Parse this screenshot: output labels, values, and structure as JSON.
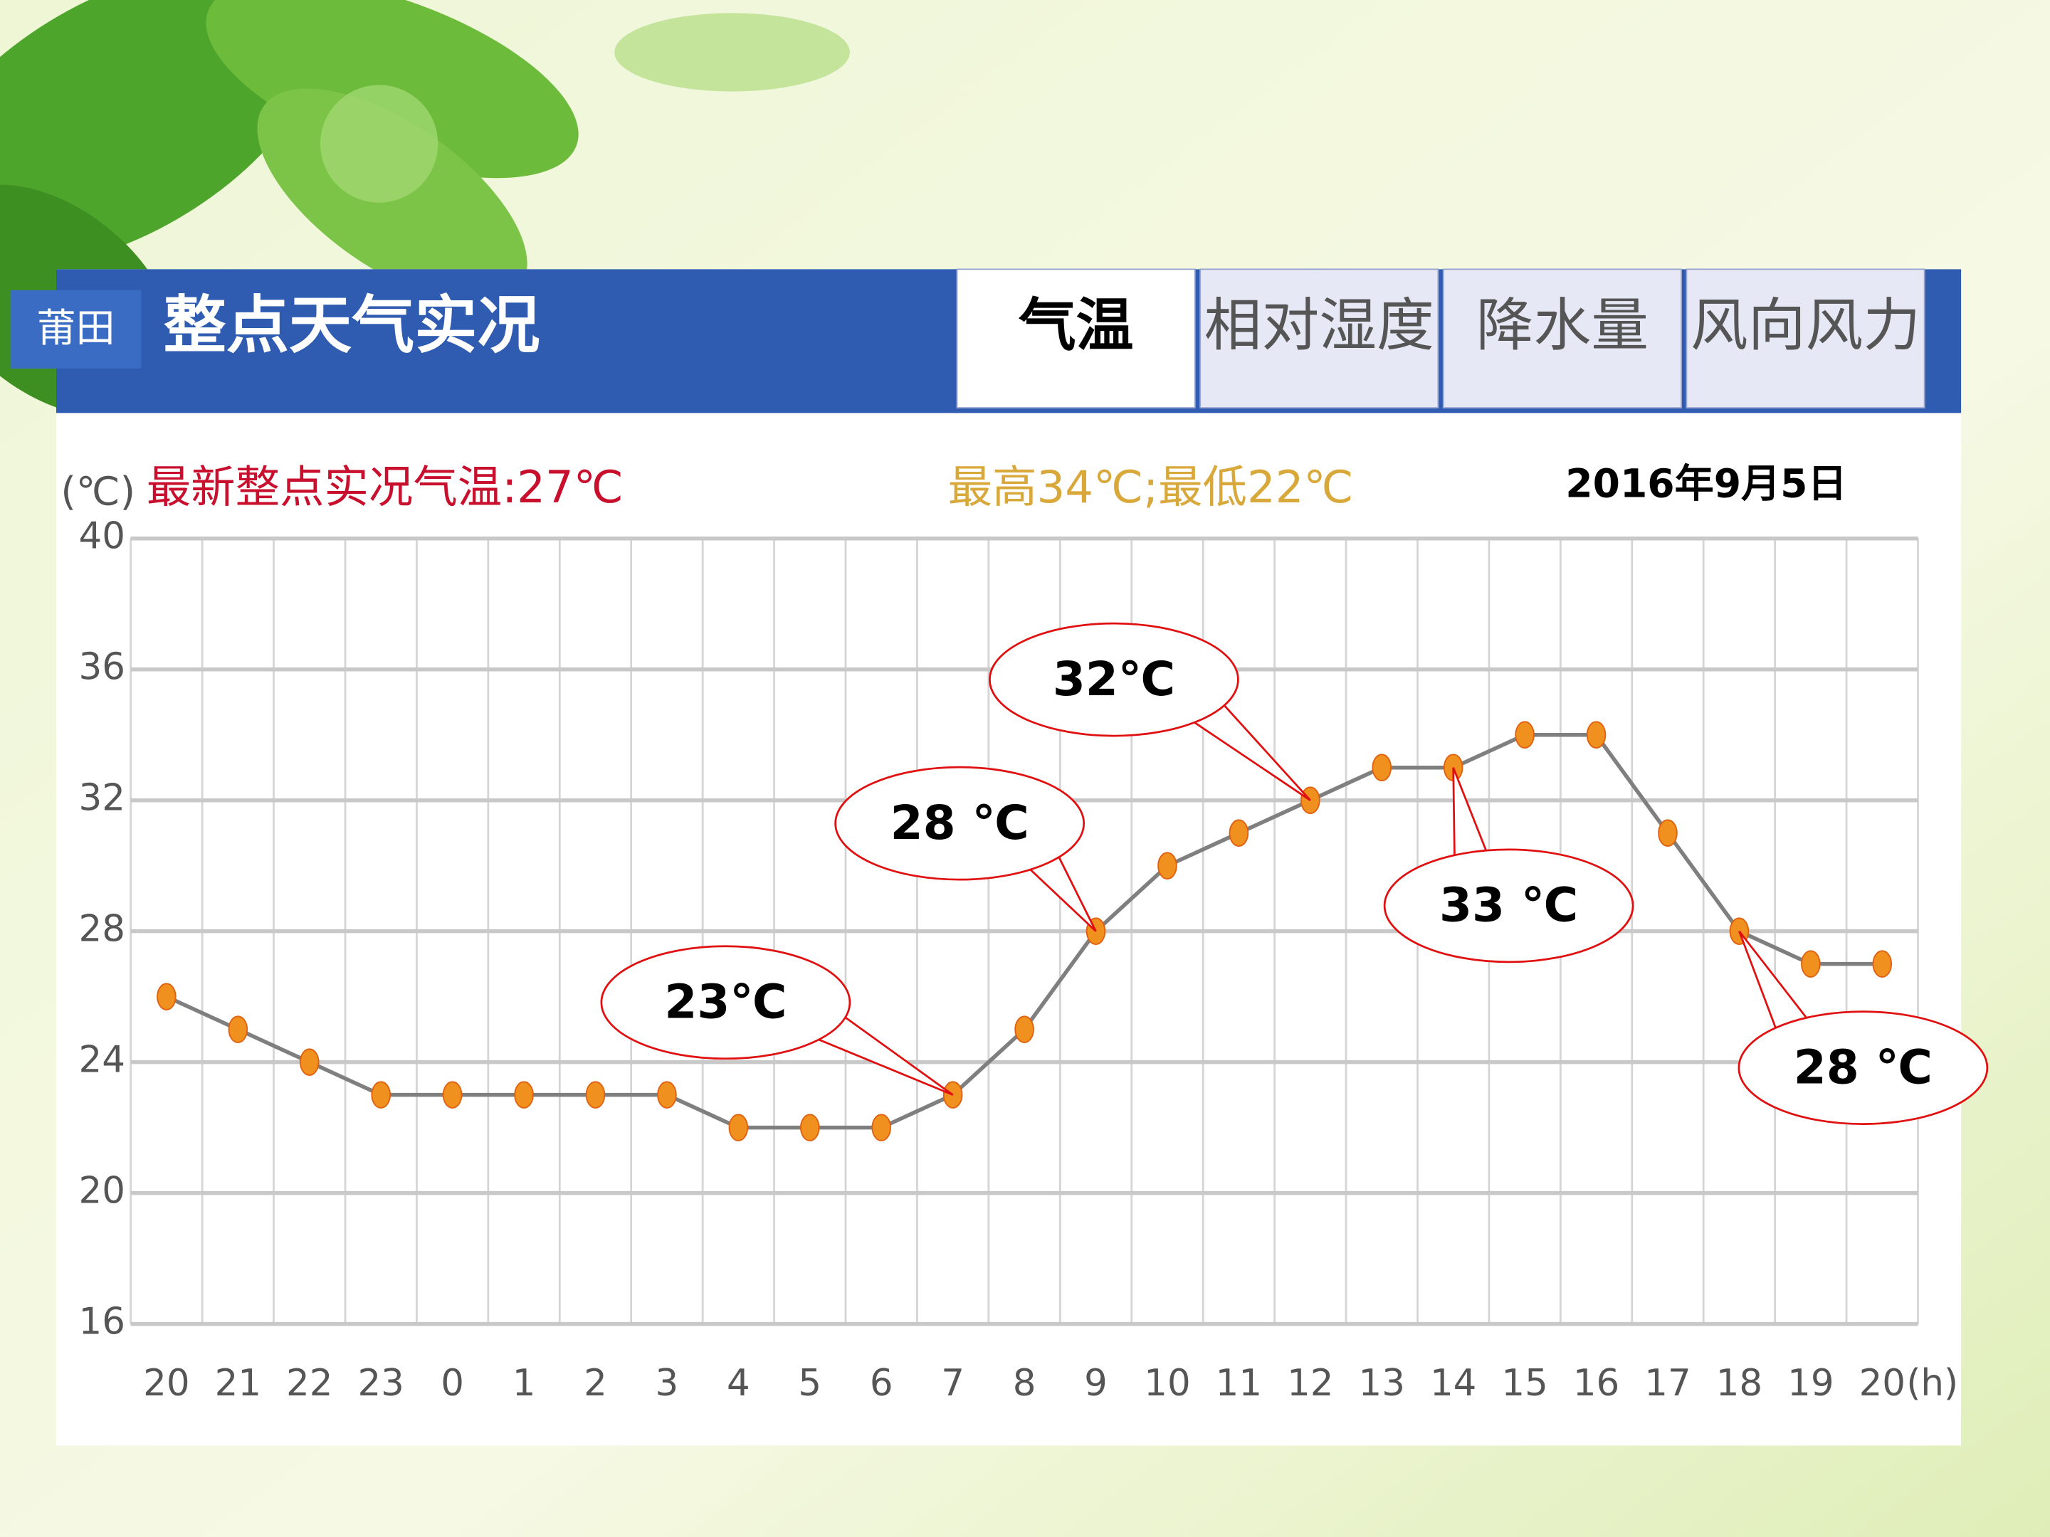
{
  "chart_data": {
    "type": "line",
    "header": {
      "city": "莆田",
      "title": "整点天气实况",
      "tabs": [
        "气温",
        "相对湿度",
        "降水量",
        "风向风力"
      ]
    },
    "latest": "最新整点实况气温:27℃",
    "range_text": "最高34℃;最低22℃",
    "date": "2016年9月5日",
    "y_unit": "(℃)",
    "x_unit": "(h)",
    "categories": [
      "20",
      "21",
      "22",
      "23",
      "0",
      "1",
      "2",
      "3",
      "4",
      "5",
      "6",
      "7",
      "8",
      "9",
      "10",
      "11",
      "12",
      "13",
      "14",
      "15",
      "16",
      "17",
      "18",
      "19",
      "20"
    ],
    "values": [
      26,
      25,
      24,
      23,
      23,
      23,
      23,
      23,
      22,
      22,
      22,
      23,
      25,
      28,
      30,
      31,
      32,
      33,
      33,
      34,
      34,
      31,
      28,
      27,
      27
    ],
    "line_color": "#7f7f7f",
    "marker_color": "#f0901e",
    "ylim": [
      16,
      40
    ],
    "yticks": [
      16,
      20,
      24,
      28,
      32,
      36,
      40
    ],
    "grid": true,
    "annotations": [
      "23℃",
      "28 ℃",
      "32℃",
      "33 ℃",
      "28 ℃"
    ]
  }
}
